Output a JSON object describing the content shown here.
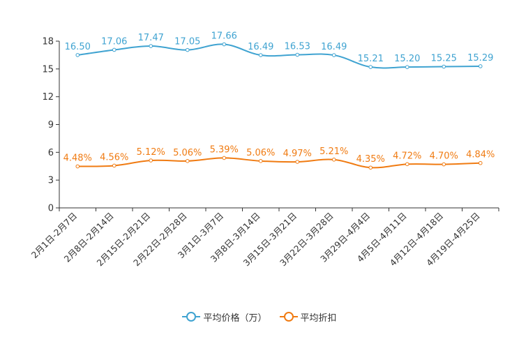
{
  "chart_data": {
    "type": "line",
    "categories": [
      "2月1日-2月7日",
      "2月8日-2月14日",
      "2月15日-2月21日",
      "2月22日-2月28日",
      "3月1日-3月7日",
      "3月8日-3月14日",
      "3月15日-3月21日",
      "3月22日-3月28日",
      "3月29日-4月4日",
      "4月5日-4月11日",
      "4月12日-4月18日",
      "4月19日-4月25日"
    ],
    "series": [
      {
        "name": "平均价格（万）",
        "color": "#3fa3d1",
        "values": [
          16.5,
          17.06,
          17.47,
          17.05,
          17.66,
          16.49,
          16.53,
          16.49,
          15.21,
          15.2,
          15.25,
          15.29
        ],
        "labels": [
          "16.50",
          "17.06",
          "17.47",
          "17.05",
          "17.66",
          "16.49",
          "16.53",
          "16.49",
          "15.21",
          "15.20",
          "15.25",
          "15.29"
        ]
      },
      {
        "name": "平均折扣",
        "color": "#f07b12",
        "values": [
          4.48,
          4.56,
          5.12,
          5.06,
          5.39,
          5.06,
          4.97,
          5.21,
          4.35,
          4.72,
          4.7,
          4.84
        ],
        "labels": [
          "4.48%",
          "4.56%",
          "5.12%",
          "5.06%",
          "5.39%",
          "5.06%",
          "4.97%",
          "5.21%",
          "4.35%",
          "4.72%",
          "4.70%",
          "4.84%"
        ]
      }
    ],
    "ylim": [
      0,
      18
    ],
    "yticks": [
      "0",
      "3",
      "6",
      "9",
      "12",
      "15",
      "18"
    ],
    "title": "",
    "xlabel": "",
    "ylabel": "",
    "grid": false,
    "legend": "bottom-center"
  }
}
